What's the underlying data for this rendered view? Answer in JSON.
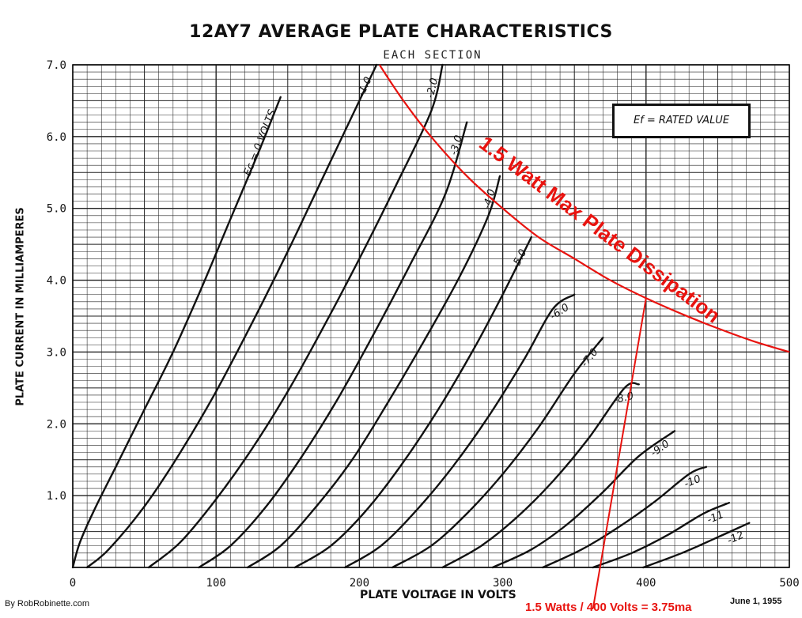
{
  "chart_data": {
    "type": "line",
    "title": "12AY7 AVERAGE PLATE CHARACTERISTICS",
    "subtitle": "EACH SECTION",
    "xlabel": "PLATE VOLTAGE IN VOLTS",
    "ylabel": "PLATE CURRENT IN MILLIAMPERES",
    "xlim": [
      0,
      500
    ],
    "ylim": [
      0,
      7.0
    ],
    "x_ticks": [
      "0",
      "100",
      "200",
      "300",
      "400",
      "500"
    ],
    "y_ticks": [
      "1.0",
      "2.0",
      "3.0",
      "4.0",
      "5.0",
      "6.0",
      "7.0"
    ],
    "grid": true,
    "annotation_box": "Ef = RATED VALUE",
    "series": [
      {
        "name": "Ec = 0 VOLTS",
        "points": [
          [
            0,
            0
          ],
          [
            5,
            0.35
          ],
          [
            15,
            0.8
          ],
          [
            30,
            1.4
          ],
          [
            50,
            2.2
          ],
          [
            70,
            3.0
          ],
          [
            90,
            3.9
          ],
          [
            110,
            4.85
          ],
          [
            130,
            5.8
          ],
          [
            145,
            6.55
          ]
        ]
      },
      {
        "name": "-1.0",
        "points": [
          [
            10,
            0
          ],
          [
            25,
            0.25
          ],
          [
            50,
            0.85
          ],
          [
            75,
            1.6
          ],
          [
            100,
            2.45
          ],
          [
            125,
            3.4
          ],
          [
            150,
            4.4
          ],
          [
            175,
            5.45
          ],
          [
            200,
            6.5
          ],
          [
            212,
            7.0
          ]
        ]
      },
      {
        "name": "-2.0",
        "points": [
          [
            53,
            0
          ],
          [
            75,
            0.35
          ],
          [
            100,
            0.95
          ],
          [
            125,
            1.65
          ],
          [
            150,
            2.45
          ],
          [
            175,
            3.35
          ],
          [
            200,
            4.3
          ],
          [
            225,
            5.3
          ],
          [
            250,
            6.35
          ],
          [
            258,
            7.0
          ]
        ]
      },
      {
        "name": "-3.0",
        "points": [
          [
            88,
            0
          ],
          [
            110,
            0.3
          ],
          [
            135,
            0.85
          ],
          [
            160,
            1.55
          ],
          [
            185,
            2.35
          ],
          [
            210,
            3.25
          ],
          [
            235,
            4.2
          ],
          [
            260,
            5.2
          ],
          [
            275,
            6.2
          ]
        ]
      },
      {
        "name": "-4.0",
        "points": [
          [
            122,
            0
          ],
          [
            145,
            0.3
          ],
          [
            170,
            0.85
          ],
          [
            195,
            1.5
          ],
          [
            220,
            2.3
          ],
          [
            245,
            3.15
          ],
          [
            270,
            4.05
          ],
          [
            290,
            4.9
          ],
          [
            298,
            5.45
          ]
        ]
      },
      {
        "name": "-5.0",
        "points": [
          [
            155,
            0
          ],
          [
            180,
            0.3
          ],
          [
            205,
            0.8
          ],
          [
            230,
            1.45
          ],
          [
            255,
            2.2
          ],
          [
            280,
            3.05
          ],
          [
            300,
            3.8
          ],
          [
            320,
            4.6
          ]
        ]
      },
      {
        "name": "-6.0",
        "points": [
          [
            190,
            0
          ],
          [
            215,
            0.3
          ],
          [
            240,
            0.8
          ],
          [
            265,
            1.4
          ],
          [
            290,
            2.1
          ],
          [
            315,
            2.9
          ],
          [
            335,
            3.6
          ],
          [
            350,
            3.8
          ]
        ]
      },
      {
        "name": "-7.0",
        "points": [
          [
            223,
            0
          ],
          [
            250,
            0.3
          ],
          [
            275,
            0.75
          ],
          [
            300,
            1.3
          ],
          [
            325,
            1.95
          ],
          [
            350,
            2.7
          ],
          [
            370,
            3.2
          ]
        ]
      },
      {
        "name": "-8.0",
        "points": [
          [
            258,
            0
          ],
          [
            285,
            0.3
          ],
          [
            310,
            0.7
          ],
          [
            335,
            1.2
          ],
          [
            360,
            1.8
          ],
          [
            385,
            2.5
          ],
          [
            395,
            2.55
          ]
        ]
      },
      {
        "name": "-9.0",
        "points": [
          [
            293,
            0
          ],
          [
            320,
            0.25
          ],
          [
            345,
            0.6
          ],
          [
            370,
            1.05
          ],
          [
            395,
            1.55
          ],
          [
            420,
            1.9
          ]
        ]
      },
      {
        "name": "-10",
        "points": [
          [
            328,
            0
          ],
          [
            355,
            0.25
          ],
          [
            380,
            0.55
          ],
          [
            405,
            0.9
          ],
          [
            430,
            1.3
          ],
          [
            442,
            1.4
          ]
        ]
      },
      {
        "name": "-11",
        "points": [
          [
            363,
            0
          ],
          [
            390,
            0.2
          ],
          [
            415,
            0.45
          ],
          [
            440,
            0.75
          ],
          [
            458,
            0.9
          ]
        ]
      },
      {
        "name": "-12",
        "points": [
          [
            398,
            0
          ],
          [
            425,
            0.2
          ],
          [
            450,
            0.42
          ],
          [
            472,
            0.62
          ]
        ]
      }
    ],
    "overlay": {
      "label": "1.5 Watt Max Plate Dissipation",
      "color": "#e8130f",
      "points": [
        [
          214,
          7.0
        ],
        [
          230,
          6.52
        ],
        [
          250,
          6.0
        ],
        [
          275,
          5.45
        ],
        [
          300,
          5.0
        ],
        [
          325,
          4.6
        ],
        [
          350,
          4.3
        ],
        [
          375,
          4.0
        ],
        [
          400,
          3.75
        ],
        [
          425,
          3.53
        ],
        [
          450,
          3.33
        ],
        [
          475,
          3.15
        ],
        [
          500,
          3.0
        ]
      ],
      "marker_line": [
        [
          400,
          3.75
        ],
        [
          363,
          0
        ]
      ],
      "footnote": "1.5 Watts / 400 Volts = 3.75ma"
    }
  },
  "page": {
    "credit": "By RobRobinette.com",
    "date": "June 1, 1955"
  }
}
